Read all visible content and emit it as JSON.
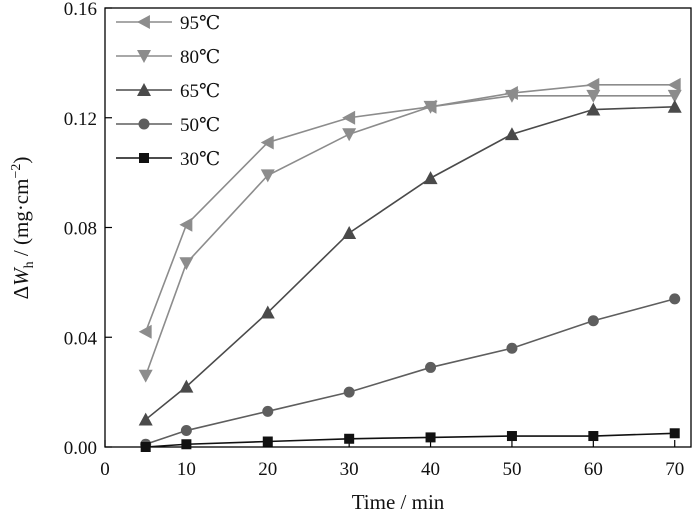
{
  "chart_data": {
    "type": "line",
    "xlabel": "Time / min",
    "ylabel_parts": {
      "delta": "Δ",
      "symbol": "W",
      "subscript": "h",
      "unit": " / (mg·cm",
      "exponent": "−2",
      "close": ")"
    },
    "xlim": [
      0,
      72
    ],
    "ylim": [
      0,
      0.16
    ],
    "x_ticks": [
      0,
      10,
      20,
      30,
      40,
      50,
      60,
      70
    ],
    "y_ticks": [
      0.0,
      0.04,
      0.08,
      0.12,
      0.16
    ],
    "y_tick_labels": [
      "0.00",
      "0.04",
      "0.08",
      "0.12",
      "0.16"
    ],
    "x": [
      5,
      10,
      20,
      30,
      40,
      50,
      60,
      70
    ],
    "legend_position": "top-left",
    "series": [
      {
        "name": "95℃",
        "marker": "triangle-left",
        "color": "#8c8c8c",
        "values": [
          0.042,
          0.081,
          0.111,
          0.12,
          0.124,
          0.129,
          0.132,
          0.132
        ]
      },
      {
        "name": "80℃",
        "marker": "triangle-down",
        "color": "#8c8c8c",
        "values": [
          0.026,
          0.067,
          0.099,
          0.114,
          0.124,
          0.128,
          0.128,
          0.128
        ]
      },
      {
        "name": "65℃",
        "marker": "triangle-up",
        "color": "#4a4a4a",
        "values": [
          0.01,
          0.022,
          0.049,
          0.078,
          0.098,
          0.114,
          0.123,
          0.124
        ]
      },
      {
        "name": "50℃",
        "marker": "circle",
        "color": "#5e5e5e",
        "values": [
          0.001,
          0.006,
          0.013,
          0.02,
          0.029,
          0.036,
          0.046,
          0.054
        ]
      },
      {
        "name": "30℃",
        "marker": "square",
        "color": "#111111",
        "values": [
          0.0,
          0.001,
          0.002,
          0.003,
          0.0035,
          0.004,
          0.004,
          0.005
        ]
      }
    ]
  }
}
